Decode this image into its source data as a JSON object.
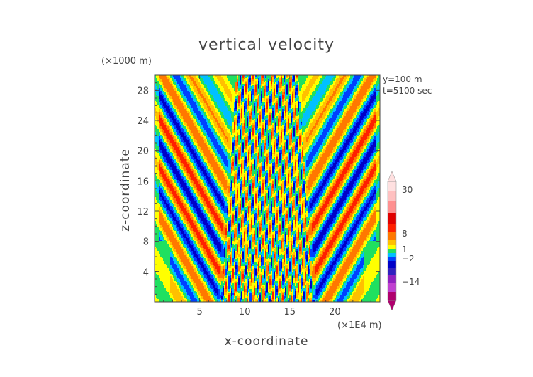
{
  "chart_data": {
    "type": "heatmap",
    "title": "vertical velocity",
    "xlabel": "x-coordinate",
    "ylabel": "z-coordinate",
    "x_unit": "(×1E4 m)",
    "y_unit": "(×1000 m)",
    "annotations": [
      "y=100  m",
      "t=5100 sec"
    ],
    "xlim": [
      0,
      25
    ],
    "ylim": [
      0,
      30
    ],
    "x_ticks": [
      5,
      10,
      15,
      20
    ],
    "y_ticks": [
      4,
      8,
      12,
      16,
      20,
      24,
      28
    ],
    "colorbar": {
      "tick_labels": [
        "30",
        "8",
        "1",
        "−2",
        "−14"
      ],
      "tick_values": [
        30,
        8,
        1,
        -2,
        -14
      ],
      "colors": [
        "#b0006e",
        "#c040d0",
        "#9020c0",
        "#3020c0",
        "#0000c8",
        "#0040ff",
        "#00c0ff",
        "#20e060",
        "#ffff00",
        "#ffc000",
        "#ff7800",
        "#ff2000",
        "#e00000",
        "#ff9090",
        "#ffc0c0",
        "#ffe0e0"
      ]
    },
    "description_pattern": "symmetric gravity-wave field about x≈12.5, turbulent core 8–18, alternating updraft/downdraft lobes outward"
  }
}
